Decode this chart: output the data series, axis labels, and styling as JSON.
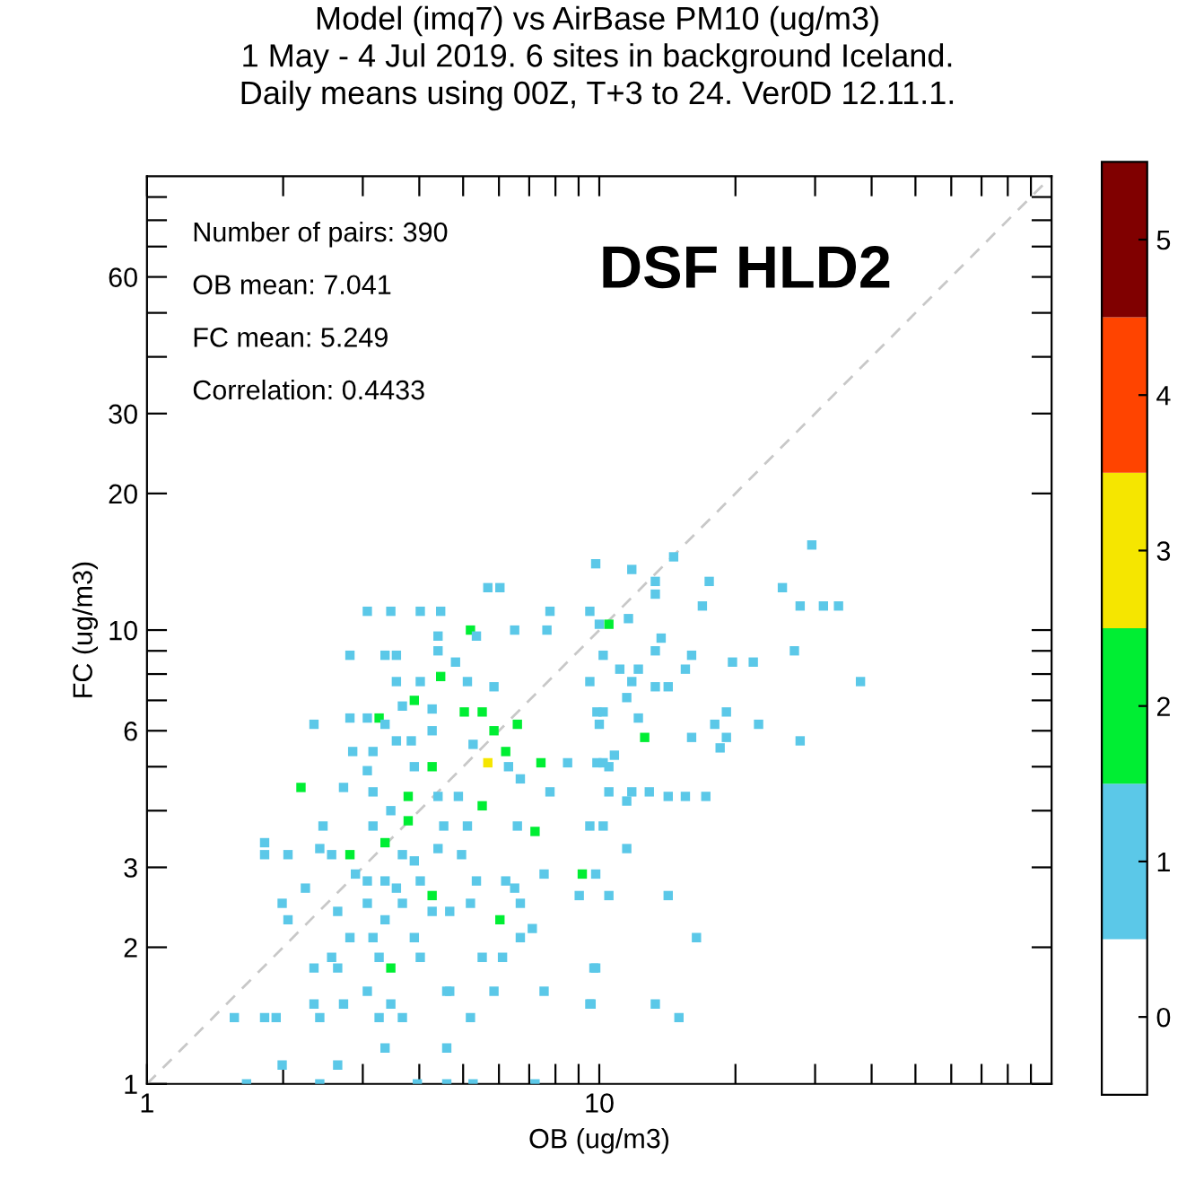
{
  "chart_data": {
    "type": "scatter",
    "title": "Model (imq7) vs AirBase PM10 (ug/m3)\n1 May - 4 Jul 2019. 6 sites in background Iceland.\nDaily means using 00Z, T+3 to 24. Ver0D 12.11.1.",
    "xlabel": "OB (ug/m3)",
    "ylabel": "FC (ug/m3)",
    "annotations": [
      "Number of pairs: 390",
      "OB mean: 7.041",
      "FC mean: 5.249",
      "Correlation: 0.4433",
      "DSF HLD2"
    ],
    "log": "xy",
    "marker": "square",
    "grid": false,
    "legend": false,
    "xlim": [
      1,
      100
    ],
    "ylim": [
      1,
      100
    ],
    "xticks": [
      1,
      {
        "value": 2,
        "label": null
      },
      {
        "value": 3,
        "label": null
      },
      {
        "value": 4,
        "label": null
      },
      {
        "value": 5,
        "label": null
      },
      {
        "value": 6,
        "label": null
      },
      {
        "value": 7,
        "label": null
      },
      {
        "value": 8,
        "label": null
      },
      {
        "value": 9,
        "label": null
      },
      10,
      {
        "value": 20,
        "label": null
      },
      {
        "value": 30,
        "label": null
      },
      {
        "value": 40,
        "label": null
      },
      {
        "value": 50,
        "label": null
      },
      {
        "value": 60,
        "label": null
      },
      {
        "value": 70,
        "label": null
      },
      {
        "value": 80,
        "label": null
      },
      {
        "value": 90,
        "label": null
      }
    ],
    "yticks": [
      1,
      2,
      3,
      {
        "value": 4,
        "label": null
      },
      {
        "value": 5,
        "label": null
      },
      6,
      {
        "value": 7,
        "label": null
      },
      {
        "value": 8,
        "label": null
      },
      {
        "value": 9,
        "label": null
      },
      10,
      20,
      30,
      {
        "value": 40,
        "label": null
      },
      {
        "value": 50,
        "label": null
      },
      60,
      {
        "value": 70,
        "label": null
      },
      {
        "value": 80,
        "label": null
      },
      {
        "value": 90,
        "label": null
      }
    ],
    "clim": [
      -0.5,
      5.5
    ],
    "cticks": [
      0,
      1,
      2,
      3,
      4,
      5
    ],
    "series": [
      {
        "x": [
          5.67,
          6.03,
          3.07,
          3.46,
          4.02,
          4.46,
          7.78,
          6.5,
          5.19,
          7.66,
          4.4,
          5.35,
          2.81,
          3.36,
          3.56,
          4.4,
          4.81,
          4.46,
          3.56,
          4.02,
          5.11,
          5.85,
          3.9,
          3.67,
          4.27,
          5.03,
          5.51,
          3.26,
          2.34,
          2.81,
          3.07,
          3.36,
          4.27,
          5.85,
          6.59,
          3.56,
          3.84,
          2.85,
          3.16,
          5.26,
          6.21,
          3.07,
          3.9,
          4.27,
          5.67,
          6.3,
          8.51,
          2.72,
          2.19,
          3.16,
          3.78,
          4.4,
          4.88,
          6.69,
          7.43,
          7.78,
          2.45,
          3.16,
          3.78,
          3.46,
          4.53,
          5.11,
          5.51,
          6.59,
          7.21,
          3.36,
          1.82,
          1.82,
          2.05,
          2.41,
          2.81,
          2.56,
          3.67,
          3.9,
          4.4,
          4.96,
          2.89,
          3.07,
          3.36,
          4.02,
          2.24,
          3.56,
          4.27,
          5.35,
          6.21,
          7.55,
          9.17,
          1.99,
          2.05,
          2.64,
          3.07,
          3.36,
          3.67,
          4.27,
          4.67,
          5.19,
          6.03,
          6.5,
          6.69,
          6.69,
          7.11,
          2.81,
          3.16,
          3.9,
          3.26,
          2.56,
          4.02,
          3.46,
          5.51,
          6.11,
          2.34,
          2.64,
          3.07,
          4.67,
          2.34,
          2.72,
          3.46,
          4.6,
          5.85,
          7.55,
          1.56,
          1.82,
          1.93,
          2.41,
          3.26,
          3.67,
          5.19,
          3.36,
          4.6,
          1.99,
          2.64,
          1.66,
          2.41,
          3.96,
          4.6,
          5.26,
          7.21,
          9.03,
          9.73,
          9.59,
          9.88,
          9.88,
          29.5,
          14.6,
          9.82,
          11.8,
          17.5,
          13.3,
          25.4,
          13.3,
          16.9,
          27.8,
          31.3,
          33.8,
          9.53,
          13.7,
          13.3,
          27.0,
          16.0,
          10.2,
          19.7,
          21.9,
          15.5,
          11.1,
          12.2,
          37.8,
          9.53,
          11.8,
          13.3,
          14.2,
          11.5,
          10.2,
          19.1,
          12.2,
          18.0,
          22.5,
          10.0,
          12.6,
          16.0,
          19.1,
          27.8,
          18.5,
          10.8,
          10.2,
          10.5,
          10.5,
          11.8,
          12.9,
          14.2,
          15.5,
          17.2,
          11.5,
          10.2,
          9.53,
          11.5,
          9.82,
          10.5,
          14.2,
          16.4,
          9.82,
          9.53,
          13.3,
          15.0,
          10.5,
          11.6,
          10.0
        ],
        "values": [
          12.4,
          12.4,
          11.0,
          11.0,
          11.0,
          11.0,
          11.0,
          10.0,
          10.0,
          10.0,
          9.7,
          9.7,
          8.8,
          8.8,
          8.8,
          9.0,
          8.5,
          7.9,
          7.7,
          7.7,
          7.7,
          7.5,
          7.0,
          6.8,
          6.7,
          6.6,
          6.6,
          6.4,
          6.2,
          6.4,
          6.4,
          6.2,
          6.0,
          6.0,
          6.2,
          5.7,
          5.7,
          5.4,
          5.4,
          5.6,
          5.4,
          4.9,
          5.0,
          5.0,
          5.1,
          5.0,
          5.1,
          4.5,
          4.5,
          4.4,
          4.3,
          4.3,
          4.3,
          4.7,
          5.1,
          4.4,
          3.7,
          3.7,
          3.8,
          4.0,
          3.7,
          3.7,
          4.1,
          3.7,
          3.6,
          3.4,
          3.4,
          3.2,
          3.2,
          3.3,
          3.2,
          3.2,
          3.2,
          3.1,
          3.3,
          3.2,
          2.9,
          2.8,
          2.8,
          2.8,
          2.7,
          2.7,
          2.6,
          2.8,
          2.8,
          2.9,
          2.9,
          2.5,
          2.3,
          2.4,
          2.5,
          2.3,
          2.5,
          2.4,
          2.4,
          2.5,
          2.3,
          2.7,
          2.5,
          2.1,
          2.2,
          2.1,
          2.1,
          2.1,
          1.9,
          1.9,
          1.9,
          1.8,
          1.9,
          1.9,
          1.8,
          1.8,
          1.6,
          1.6,
          1.5,
          1.5,
          1.5,
          1.6,
          1.6,
          1.6,
          1.4,
          1.4,
          1.4,
          1.4,
          1.4,
          1.4,
          1.4,
          1.2,
          1.2,
          1.1,
          1.1,
          1.0,
          1.0,
          1.0,
          1.0,
          1.0,
          1.0,
          2.6,
          1.8,
          1.5,
          5.1,
          6.6,
          15.4,
          14.5,
          14.0,
          13.6,
          12.8,
          12.8,
          12.4,
          12.0,
          11.3,
          11.3,
          11.3,
          11.3,
          11.0,
          9.6,
          9.0,
          9.0,
          8.8,
          8.8,
          8.5,
          8.5,
          8.2,
          8.2,
          8.2,
          7.7,
          7.7,
          7.7,
          7.5,
          7.5,
          7.1,
          6.6,
          6.6,
          6.4,
          6.2,
          6.2,
          6.2,
          5.8,
          5.8,
          5.8,
          5.7,
          5.5,
          5.3,
          5.1,
          5.0,
          4.4,
          4.4,
          4.4,
          4.3,
          4.3,
          4.3,
          4.2,
          3.7,
          3.7,
          3.3,
          2.9,
          2.6,
          2.6,
          2.1,
          1.8,
          1.5,
          1.5,
          1.4,
          10.3,
          10.6,
          10.3
        ],
        "colors": [
          "#5bc8e8",
          "#5bc8e8",
          "#5bc8e8",
          "#5bc8e8",
          "#5bc8e8",
          "#5bc8e8",
          "#5bc8e8",
          "#5bc8e8",
          "#00ee33",
          "#5bc8e8",
          "#5bc8e8",
          "#5bc8e8",
          "#5bc8e8",
          "#5bc8e8",
          "#5bc8e8",
          "#5bc8e8",
          "#5bc8e8",
          "#00ee33",
          "#5bc8e8",
          "#5bc8e8",
          "#5bc8e8",
          "#5bc8e8",
          "#00ee33",
          "#5bc8e8",
          "#5bc8e8",
          "#00ee33",
          "#00ee33",
          "#00ee33",
          "#5bc8e8",
          "#5bc8e8",
          "#5bc8e8",
          "#5bc8e8",
          "#5bc8e8",
          "#00ee33",
          "#00ee33",
          "#5bc8e8",
          "#5bc8e8",
          "#5bc8e8",
          "#5bc8e8",
          "#5bc8e8",
          "#00ee33",
          "#5bc8e8",
          "#5bc8e8",
          "#00ee33",
          "#f5e600",
          "#5bc8e8",
          "#5bc8e8",
          "#5bc8e8",
          "#00ee33",
          "#5bc8e8",
          "#00ee33",
          "#5bc8e8",
          "#5bc8e8",
          "#5bc8e8",
          "#00ee33",
          "#5bc8e8",
          "#5bc8e8",
          "#5bc8e8",
          "#00ee33",
          "#5bc8e8",
          "#5bc8e8",
          "#5bc8e8",
          "#00ee33",
          "#5bc8e8",
          "#00ee33",
          "#00ee33",
          "#5bc8e8",
          "#5bc8e8",
          "#5bc8e8",
          "#5bc8e8",
          "#00ee33",
          "#5bc8e8",
          "#5bc8e8",
          "#5bc8e8",
          "#5bc8e8",
          "#5bc8e8",
          "#5bc8e8",
          "#5bc8e8",
          "#5bc8e8",
          "#5bc8e8",
          "#5bc8e8",
          "#5bc8e8",
          "#00ee33",
          "#5bc8e8",
          "#5bc8e8",
          "#5bc8e8",
          "#00ee33",
          "#5bc8e8",
          "#5bc8e8",
          "#5bc8e8",
          "#5bc8e8",
          "#5bc8e8",
          "#5bc8e8",
          "#5bc8e8",
          "#5bc8e8",
          "#5bc8e8",
          "#00ee33",
          "#5bc8e8",
          "#5bc8e8",
          "#5bc8e8",
          "#5bc8e8",
          "#5bc8e8",
          "#5bc8e8",
          "#5bc8e8",
          "#5bc8e8",
          "#5bc8e8",
          "#5bc8e8",
          "#00ee33",
          "#5bc8e8",
          "#5bc8e8",
          "#5bc8e8",
          "#5bc8e8",
          "#5bc8e8",
          "#5bc8e8",
          "#5bc8e8",
          "#5bc8e8",
          "#5bc8e8",
          "#5bc8e8",
          "#5bc8e8",
          "#5bc8e8",
          "#5bc8e8",
          "#5bc8e8",
          "#5bc8e8",
          "#5bc8e8",
          "#5bc8e8",
          "#5bc8e8",
          "#5bc8e8",
          "#5bc8e8",
          "#5bc8e8",
          "#5bc8e8",
          "#5bc8e8",
          "#5bc8e8",
          "#5bc8e8",
          "#5bc8e8",
          "#5bc8e8",
          "#5bc8e8",
          "#5bc8e8",
          "#5bc8e8",
          "#5bc8e8",
          "#5bc8e8",
          "#5bc8e8",
          "#5bc8e8",
          "#5bc8e8",
          "#5bc8e8",
          "#5bc8e8",
          "#5bc8e8",
          "#5bc8e8",
          "#5bc8e8",
          "#5bc8e8",
          "#5bc8e8",
          "#5bc8e8",
          "#5bc8e8",
          "#5bc8e8",
          "#5bc8e8",
          "#5bc8e8",
          "#5bc8e8",
          "#5bc8e8",
          "#5bc8e8",
          "#5bc8e8",
          "#5bc8e8",
          "#5bc8e8",
          "#5bc8e8",
          "#5bc8e8",
          "#5bc8e8",
          "#5bc8e8",
          "#5bc8e8",
          "#5bc8e8",
          "#5bc8e8",
          "#5bc8e8",
          "#5bc8e8",
          "#5bc8e8",
          "#5bc8e8",
          "#5bc8e8",
          "#5bc8e8",
          "#5bc8e8",
          "#5bc8e8",
          "#5bc8e8",
          "#00ee33",
          "#5bc8e8",
          "#5bc8e8",
          "#5bc8e8",
          "#5bc8e8",
          "#5bc8e8",
          "#5bc8e8",
          "#5bc8e8",
          "#5bc8e8",
          "#5bc8e8",
          "#5bc8e8",
          "#5bc8e8",
          "#5bc8e8",
          "#5bc8e8",
          "#5bc8e8",
          "#5bc8e8",
          "#5bc8e8",
          "#5bc8e8",
          "#5bc8e8",
          "#5bc8e8",
          "#5bc8e8",
          "#5bc8e8",
          "#5bc8e8",
          "#5bc8e8",
          "#5bc8e8",
          "#5bc8e8",
          "#00ee33",
          "#5bc8e8",
          "#5bc8e8"
        ]
      },
      {
        "type": "line",
        "x": [
          1,
          100
        ],
        "values": [
          1,
          100
        ],
        "color": "#c8c8c8",
        "line_style": "dashed",
        "marker": "none"
      }
    ]
  }
}
